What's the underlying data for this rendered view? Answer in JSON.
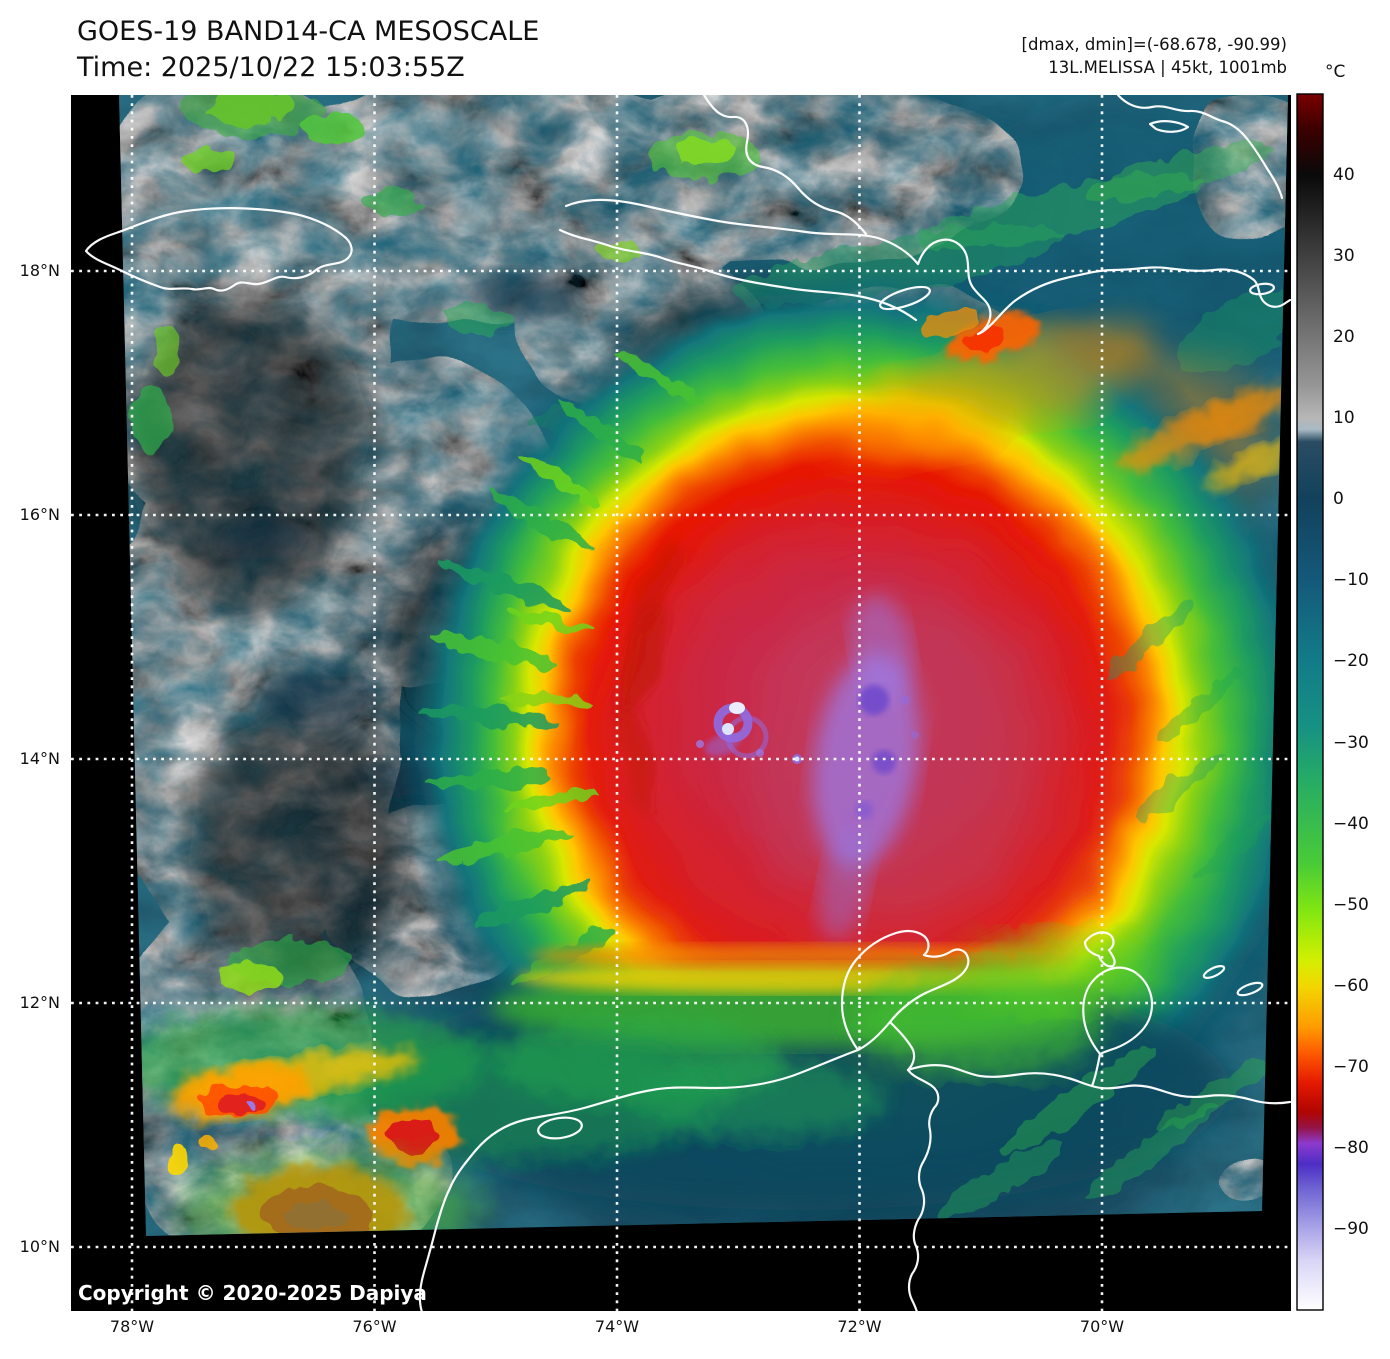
{
  "header": {
    "title": "GOES-19 BAND14-CA MESOSCALE",
    "time_line": "Time: 2025/10/22 15:03:55Z",
    "stats_line": "[dmax, dmin]=(-68.678, -90.99)",
    "storm_line": "13L.MELISSA | 45kt, 1001mb"
  },
  "colorbar": {
    "unit_label": "°C",
    "scale_max_c": 50,
    "scale_min_c": -100,
    "ticks": [
      {
        "label": "40",
        "value": 40
      },
      {
        "label": "30",
        "value": 30
      },
      {
        "label": "20",
        "value": 20
      },
      {
        "label": "10",
        "value": 10
      },
      {
        "label": "0",
        "value": 0
      },
      {
        "label": "−10",
        "value": -10
      },
      {
        "label": "−20",
        "value": -20
      },
      {
        "label": "−30",
        "value": -30
      },
      {
        "label": "−40",
        "value": -40
      },
      {
        "label": "−50",
        "value": -50
      },
      {
        "label": "−60",
        "value": -60
      },
      {
        "label": "−70",
        "value": -70
      },
      {
        "label": "−80",
        "value": -80
      },
      {
        "label": "−90",
        "value": -90
      }
    ]
  },
  "axes": {
    "latitude_labels": [
      {
        "label": "18°N",
        "value": 18
      },
      {
        "label": "16°N",
        "value": 16
      },
      {
        "label": "14°N",
        "value": 14
      },
      {
        "label": "12°N",
        "value": 12
      },
      {
        "label": "10°N",
        "value": 10
      }
    ],
    "longitude_labels": [
      {
        "label": "78°W",
        "value": -78
      },
      {
        "label": "76°W",
        "value": -76
      },
      {
        "label": "74°W",
        "value": -74
      },
      {
        "label": "72°W",
        "value": -72
      },
      {
        "label": "70°W",
        "value": -70
      }
    ]
  },
  "map": {
    "copyright": "Copyright © 2020-2025 Dapiya"
  }
}
